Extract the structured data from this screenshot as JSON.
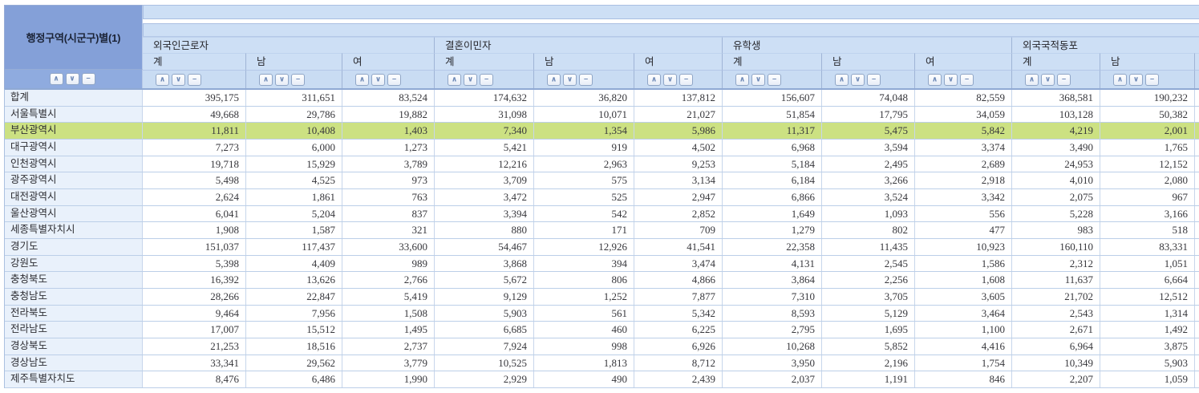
{
  "table": {
    "row_header_title": "행정구역(시군구)별(1)",
    "groups": [
      {
        "label": "외국인근로자",
        "columns": [
          "계",
          "남",
          "여"
        ]
      },
      {
        "label": "결혼이민자",
        "columns": [
          "계",
          "남",
          "여"
        ]
      },
      {
        "label": "유학생",
        "columns": [
          "계",
          "남",
          "여"
        ]
      },
      {
        "label": "외국국적동포",
        "columns": [
          "계",
          "남"
        ]
      }
    ],
    "sort_controls": {
      "ascending": "∧",
      "descending": "∨",
      "clear": "−"
    },
    "highlighted_row": "부산광역시",
    "rows": [
      {
        "name": "합계",
        "values": [
          "395,175",
          "311,651",
          "83,524",
          "174,632",
          "36,820",
          "137,812",
          "156,607",
          "74,048",
          "82,559",
          "368,581",
          "190,232"
        ]
      },
      {
        "name": "서울특별시",
        "values": [
          "49,668",
          "29,786",
          "19,882",
          "31,098",
          "10,071",
          "21,027",
          "51,854",
          "17,795",
          "34,059",
          "103,128",
          "50,382"
        ]
      },
      {
        "name": "부산광역시",
        "values": [
          "11,811",
          "10,408",
          "1,403",
          "7,340",
          "1,354",
          "5,986",
          "11,317",
          "5,475",
          "5,842",
          "4,219",
          "2,001"
        ]
      },
      {
        "name": "대구광역시",
        "values": [
          "7,273",
          "6,000",
          "1,273",
          "5,421",
          "919",
          "4,502",
          "6,968",
          "3,594",
          "3,374",
          "3,490",
          "1,765"
        ]
      },
      {
        "name": "인천광역시",
        "values": [
          "19,718",
          "15,929",
          "3,789",
          "12,216",
          "2,963",
          "9,253",
          "5,184",
          "2,495",
          "2,689",
          "24,953",
          "12,152"
        ]
      },
      {
        "name": "광주광역시",
        "values": [
          "5,498",
          "4,525",
          "973",
          "3,709",
          "575",
          "3,134",
          "6,184",
          "3,266",
          "2,918",
          "4,010",
          "2,080"
        ]
      },
      {
        "name": "대전광역시",
        "values": [
          "2,624",
          "1,861",
          "763",
          "3,472",
          "525",
          "2,947",
          "6,866",
          "3,524",
          "3,342",
          "2,075",
          "967"
        ]
      },
      {
        "name": "울산광역시",
        "values": [
          "6,041",
          "5,204",
          "837",
          "3,394",
          "542",
          "2,852",
          "1,649",
          "1,093",
          "556",
          "5,228",
          "3,166"
        ]
      },
      {
        "name": "세종특별자치시",
        "values": [
          "1,908",
          "1,587",
          "321",
          "880",
          "171",
          "709",
          "1,279",
          "802",
          "477",
          "983",
          "518"
        ]
      },
      {
        "name": "경기도",
        "values": [
          "151,037",
          "117,437",
          "33,600",
          "54,467",
          "12,926",
          "41,541",
          "22,358",
          "11,435",
          "10,923",
          "160,110",
          "83,331"
        ]
      },
      {
        "name": "강원도",
        "values": [
          "5,398",
          "4,409",
          "989",
          "3,868",
          "394",
          "3,474",
          "4,131",
          "2,545",
          "1,586",
          "2,312",
          "1,051"
        ]
      },
      {
        "name": "충청북도",
        "values": [
          "16,392",
          "13,626",
          "2,766",
          "5,672",
          "806",
          "4,866",
          "3,864",
          "2,256",
          "1,608",
          "11,637",
          "6,664"
        ]
      },
      {
        "name": "충청남도",
        "values": [
          "28,266",
          "22,847",
          "5,419",
          "9,129",
          "1,252",
          "7,877",
          "7,310",
          "3,705",
          "3,605",
          "21,702",
          "12,512"
        ]
      },
      {
        "name": "전라북도",
        "values": [
          "9,464",
          "7,956",
          "1,508",
          "5,903",
          "561",
          "5,342",
          "8,593",
          "5,129",
          "3,464",
          "2,543",
          "1,314"
        ]
      },
      {
        "name": "전라남도",
        "values": [
          "17,007",
          "15,512",
          "1,495",
          "6,685",
          "460",
          "6,225",
          "2,795",
          "1,695",
          "1,100",
          "2,671",
          "1,492"
        ]
      },
      {
        "name": "경상북도",
        "values": [
          "21,253",
          "18,516",
          "2,737",
          "7,924",
          "998",
          "6,926",
          "10,268",
          "5,852",
          "4,416",
          "6,964",
          "3,875"
        ]
      },
      {
        "name": "경상남도",
        "values": [
          "33,341",
          "29,562",
          "3,779",
          "10,525",
          "1,813",
          "8,712",
          "3,950",
          "2,196",
          "1,754",
          "10,349",
          "5,903"
        ]
      },
      {
        "name": "제주특별자치도",
        "values": [
          "8,476",
          "6,486",
          "1,990",
          "2,929",
          "490",
          "2,439",
          "2,037",
          "1,191",
          "846",
          "2,207",
          "1,059"
        ]
      }
    ]
  },
  "colors": {
    "header_dark": "#84A0D8",
    "header_dark_sort": "#8FABDF",
    "header_light": "#CDDFF5",
    "sort_row": "#C9DCF3",
    "highlight": "#CCE182",
    "name_cell": "#E9F1FB",
    "grid_line": "#C7D6EB"
  }
}
